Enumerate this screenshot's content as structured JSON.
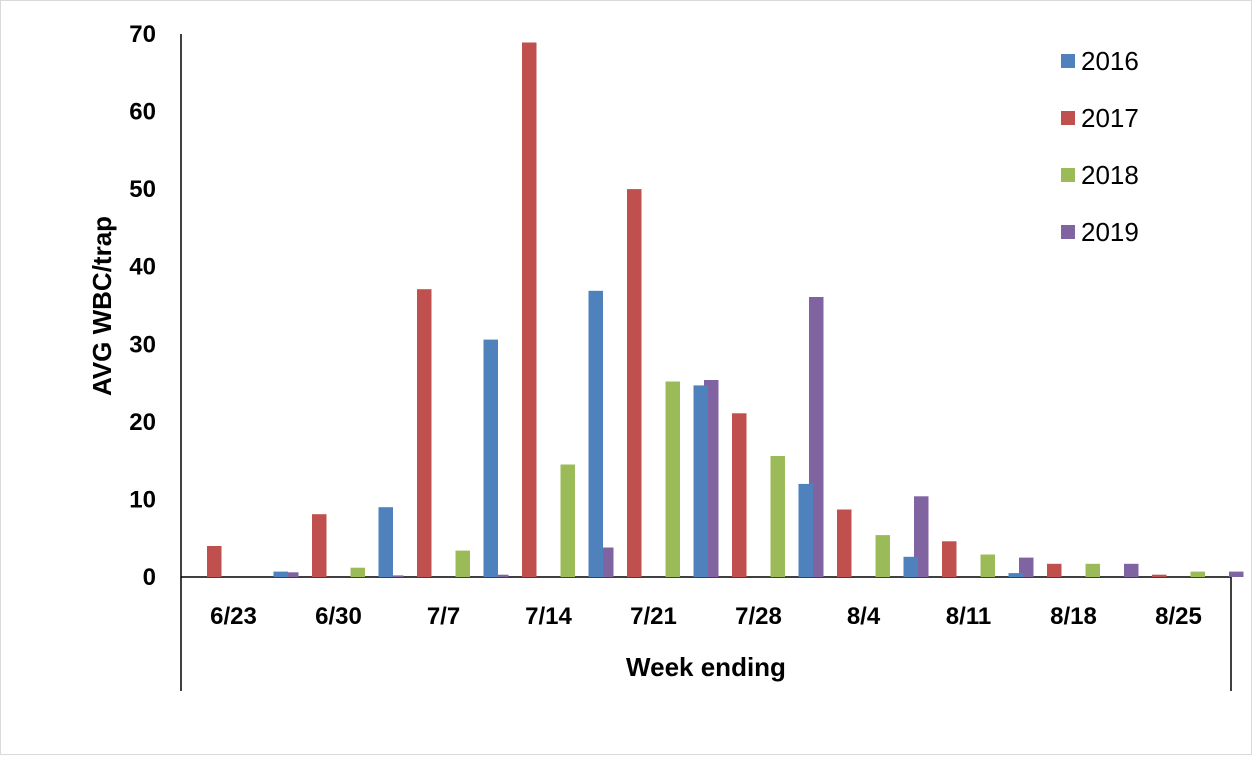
{
  "chart_data": {
    "type": "bar",
    "title": "",
    "xlabel": "Week ending",
    "ylabel": "AVG WBC/trap",
    "ylim": [
      0,
      70
    ],
    "yticks": [
      "0",
      "10",
      "20",
      "30",
      "40",
      "50",
      "60",
      "70"
    ],
    "grid": false,
    "legend_position": "top-right",
    "categories": [
      "6/23",
      "6/30",
      "7/7",
      "7/14",
      "7/21",
      "7/28",
      "8/4",
      "8/11",
      "8/18",
      "8/25"
    ],
    "series": [
      {
        "name": "2016",
        "color": "#4F81BD",
        "values": [
          0,
          0.7,
          9.0,
          30.6,
          36.9,
          24.7,
          12.0,
          2.6,
          0.5,
          0
        ]
      },
      {
        "name": "2017",
        "color": "#C0504D",
        "values": [
          4.0,
          8.1,
          37.1,
          68.9,
          50.0,
          21.1,
          8.7,
          4.6,
          1.7,
          0.3
        ]
      },
      {
        "name": "2018",
        "color": "#9BBB59",
        "values": [
          0,
          1.2,
          3.4,
          14.5,
          25.2,
          15.6,
          5.4,
          2.9,
          1.7,
          0.7
        ]
      },
      {
        "name": "2019",
        "color": "#8064A2",
        "values": [
          0.6,
          0.2,
          0.3,
          3.8,
          25.4,
          36.1,
          10.4,
          2.5,
          1.7,
          0.7
        ]
      }
    ]
  }
}
